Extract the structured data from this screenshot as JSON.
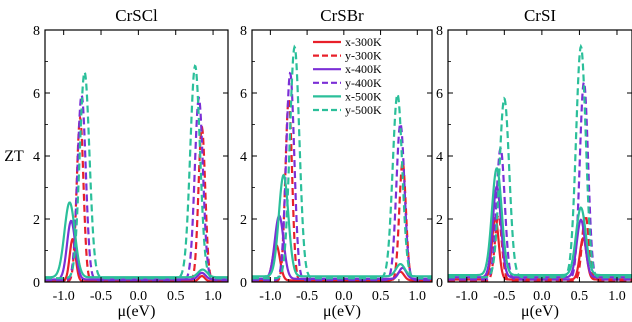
{
  "chart_data": {
    "type": "line",
    "ylabel": "ZT",
    "xlabel": "μ(eV)",
    "xlim": [
      -1.25,
      1.2
    ],
    "ylim": [
      0,
      8
    ],
    "xticks": [
      -1.0,
      -0.5,
      0.0,
      0.5,
      1.0
    ],
    "xtick_labels": [
      "-1.0",
      "-0.5",
      "0.0",
      "0.5",
      "1.0"
    ],
    "yticks": [
      0,
      2,
      4,
      6,
      8
    ],
    "ytick_labels": [
      "0",
      "2",
      "4",
      "6",
      "8"
    ],
    "legend_location": "top-center of middle panel",
    "series_styles": [
      {
        "name": "x-300K",
        "color": "#e8202a",
        "dash": "solid"
      },
      {
        "name": "y-300K",
        "color": "#e8202a",
        "dash": "dashed"
      },
      {
        "name": "x-400K",
        "color": "#7b2fd6",
        "dash": "solid"
      },
      {
        "name": "y-400K",
        "color": "#7b2fd6",
        "dash": "dashed"
      },
      {
        "name": "x-500K",
        "color": "#2bbf9a",
        "dash": "solid"
      },
      {
        "name": "y-500K",
        "color": "#2bbf9a",
        "dash": "dashed"
      }
    ],
    "panels": [
      {
        "title": "CrSCl",
        "series": [
          {
            "name": "x-300K",
            "peaks": [
              [
                -0.88,
                1.35,
                0.04
              ],
              [
                0.85,
                0.18,
                0.04
              ]
            ],
            "base": 0.02
          },
          {
            "name": "y-300K",
            "peaks": [
              [
                -0.78,
                5.2,
                0.045
              ],
              [
                0.85,
                4.9,
                0.045
              ]
            ],
            "base": 0.02
          },
          {
            "name": "x-400K",
            "peaks": [
              [
                -0.9,
                1.9,
                0.055
              ],
              [
                0.85,
                0.25,
                0.05
              ]
            ],
            "base": 0.08
          },
          {
            "name": "y-400K",
            "peaks": [
              [
                -0.76,
                5.9,
                0.055
              ],
              [
                0.81,
                5.8,
                0.055
              ]
            ],
            "base": 0.06
          },
          {
            "name": "x-500K",
            "peaks": [
              [
                -0.92,
                2.45,
                0.07
              ],
              [
                0.86,
                0.32,
                0.06
              ]
            ],
            "base": 0.15
          },
          {
            "name": "y-500K",
            "peaks": [
              [
                -0.72,
                6.6,
                0.065
              ],
              [
                0.76,
                6.8,
                0.065
              ]
            ],
            "base": 0.12
          }
        ]
      },
      {
        "title": "CrSBr",
        "series": [
          {
            "name": "x-300K",
            "peaks": [
              [
                -0.92,
                1.15,
                0.05
              ],
              [
                0.77,
                0.3,
                0.05
              ]
            ],
            "base": 0.05
          },
          {
            "name": "y-300K",
            "peaks": [
              [
                -0.75,
                5.8,
                0.045
              ],
              [
                0.8,
                3.8,
                0.045
              ]
            ],
            "base": 0.02
          },
          {
            "name": "x-400K",
            "peaks": [
              [
                -0.88,
                2.05,
                0.06
              ],
              [
                0.8,
                0.4,
                0.05
              ]
            ],
            "base": 0.1
          },
          {
            "name": "y-400K",
            "peaks": [
              [
                -0.73,
                6.6,
                0.055
              ],
              [
                0.77,
                5.0,
                0.055
              ]
            ],
            "base": 0.06
          },
          {
            "name": "x-500K",
            "peaks": [
              [
                -0.82,
                3.3,
                0.065
              ],
              [
                0.77,
                0.48,
                0.06
              ]
            ],
            "base": 0.18
          },
          {
            "name": "y-500K",
            "peaks": [
              [
                -0.67,
                7.4,
                0.065
              ],
              [
                0.73,
                5.9,
                0.065
              ]
            ],
            "base": 0.12
          }
        ]
      },
      {
        "title": "CrSI",
        "series": [
          {
            "name": "x-300K",
            "peaks": [
              [
                -0.62,
                2.0,
                0.045
              ],
              [
                0.55,
                1.35,
                0.045
              ]
            ],
            "base": 0.08
          },
          {
            "name": "y-300K",
            "peaks": [
              [
                -0.58,
                2.1,
                0.045
              ],
              [
                0.58,
                2.1,
                0.045
              ]
            ],
            "base": 0.04
          },
          {
            "name": "x-400K",
            "peaks": [
              [
                -0.6,
                2.95,
                0.055
              ],
              [
                0.52,
                1.9,
                0.055
              ]
            ],
            "base": 0.15
          },
          {
            "name": "y-400K",
            "peaks": [
              [
                -0.55,
                4.2,
                0.055
              ],
              [
                0.56,
                6.3,
                0.055
              ]
            ],
            "base": 0.08
          },
          {
            "name": "x-500K",
            "peaks": [
              [
                -0.6,
                3.5,
                0.065
              ],
              [
                0.52,
                2.25,
                0.065
              ]
            ],
            "base": 0.22
          },
          {
            "name": "y-500K",
            "peaks": [
              [
                -0.5,
                5.75,
                0.065
              ],
              [
                0.52,
                7.4,
                0.065
              ]
            ],
            "base": 0.15
          }
        ]
      }
    ]
  }
}
